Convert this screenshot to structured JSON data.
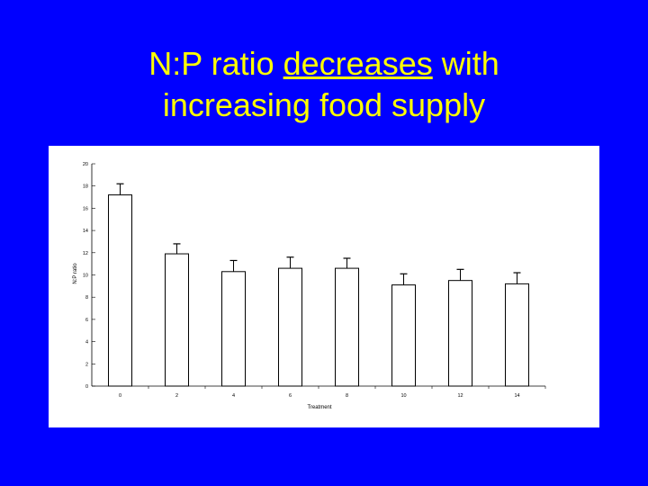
{
  "slide": {
    "title_prefix": "N:P ratio ",
    "title_emphasis": "decreases",
    "title_suffix": " with",
    "title_line2": "increasing food supply"
  },
  "colors": {
    "background": "#0000ff",
    "title": "#ffff00",
    "panel": "#ffffff",
    "bar_fill": "#ffffff",
    "bar_stroke": "#000000"
  },
  "chart_data": {
    "type": "bar",
    "title": "",
    "xlabel": "Treatment",
    "ylabel": "N:P ratio",
    "categories": [
      "0",
      "2",
      "4",
      "6",
      "8",
      "10",
      "12",
      "14"
    ],
    "values": [
      17.2,
      11.9,
      10.3,
      10.6,
      10.6,
      9.1,
      9.5,
      9.2
    ],
    "error_upper": [
      1.0,
      0.9,
      1.0,
      1.0,
      0.9,
      1.0,
      1.0,
      1.0
    ],
    "ylim": [
      0,
      20
    ],
    "yticks": [
      0,
      2,
      4,
      6,
      8,
      10,
      12,
      14,
      16,
      18,
      20
    ],
    "grid": false,
    "legend": "none"
  }
}
